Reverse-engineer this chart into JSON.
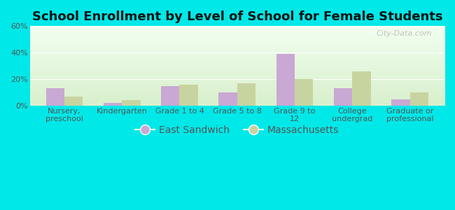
{
  "title": "School Enrollment by Level of School for Female Students",
  "categories": [
    "Nursery,\npreschool",
    "Kindergarten",
    "Grade 1 to 4",
    "Grade 5 to 8",
    "Grade 9 to\n12",
    "College\nundergrad",
    "Graduate or\nprofessional"
  ],
  "east_sandwich": [
    13,
    2,
    15,
    10,
    39,
    13,
    5
  ],
  "massachusetts": [
    7,
    4,
    16,
    17,
    20,
    26,
    10
  ],
  "bar_color_es": "#c9a8d4",
  "bar_color_ma": "#c8d4a0",
  "background_color": "#00e8e8",
  "plot_bg_top": "#f2fef0",
  "plot_bg_bottom": "#d8f0cc",
  "ylim": [
    0,
    60
  ],
  "yticks": [
    0,
    20,
    40,
    60
  ],
  "ytick_labels": [
    "0%",
    "20%",
    "40%",
    "60%"
  ],
  "legend_labels": [
    "East Sandwich",
    "Massachusetts"
  ],
  "watermark": "City-Data.com",
  "title_fontsize": 13,
  "tick_fontsize": 8,
  "legend_fontsize": 10
}
